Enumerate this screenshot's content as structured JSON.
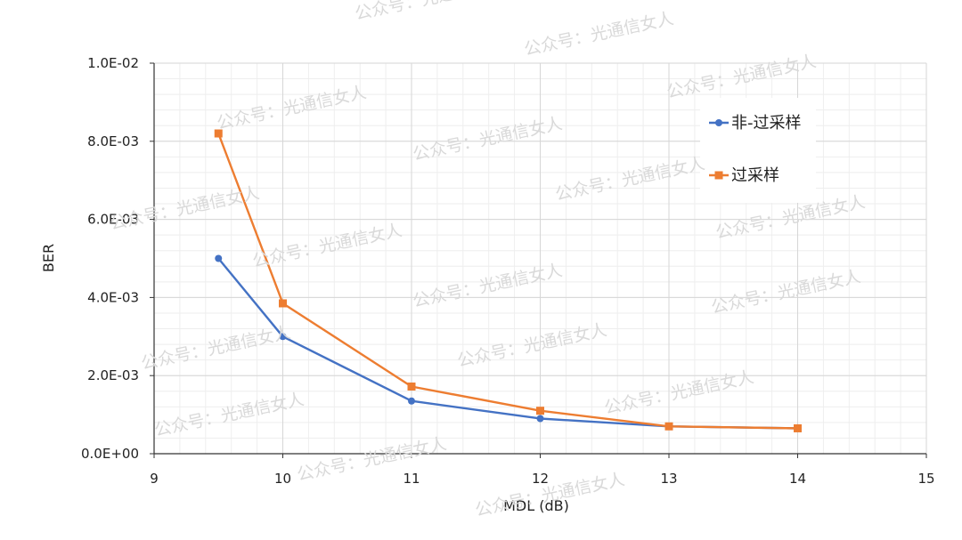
{
  "chart_data": {
    "type": "line",
    "xlabel": "MDL  (dB)",
    "ylabel": "BER",
    "xlim": [
      9,
      15
    ],
    "ylim": [
      0,
      0.01
    ],
    "x_ticks": [
      9,
      10,
      11,
      12,
      13,
      14,
      15
    ],
    "x_tick_labels": [
      "9",
      "10",
      "11",
      "12",
      "13",
      "14",
      "15"
    ],
    "y_ticks": [
      0,
      0.002,
      0.004,
      0.006,
      0.008,
      0.01
    ],
    "y_tick_labels": [
      "0.0E+00",
      "2.0E-03",
      "4.0E-03",
      "6.0E-03",
      "8.0E-03",
      "1.0E-02"
    ],
    "x_minor_step": 0.2,
    "y_minor_step": 0.0004,
    "grid": true,
    "legend_position": "top-right",
    "series": [
      {
        "name": "非-过采样",
        "color": "#4472c4",
        "marker": "circle",
        "x": [
          9.5,
          10,
          11,
          12,
          13,
          14
        ],
        "y": [
          0.005,
          0.003,
          0.00135,
          0.0009,
          0.0007,
          0.00065
        ]
      },
      {
        "name": "过采样",
        "color": "#ed7d31",
        "marker": "square",
        "x": [
          9.5,
          10,
          11,
          12,
          13,
          14
        ],
        "y": [
          0.0082,
          0.00385,
          0.00172,
          0.0011,
          0.0007,
          0.00065
        ]
      }
    ]
  },
  "watermark": {
    "text": "公众号：光通信女人"
  }
}
